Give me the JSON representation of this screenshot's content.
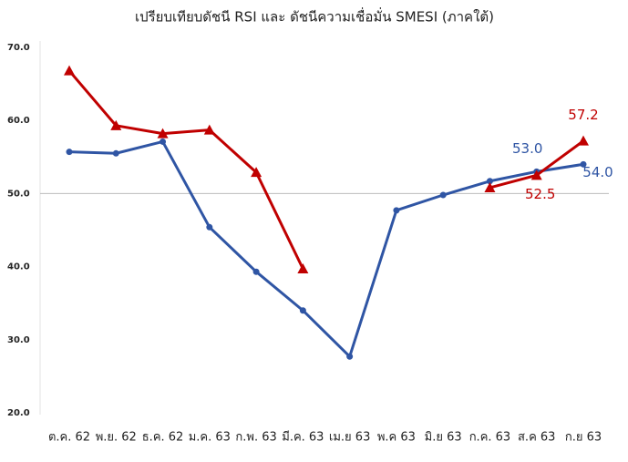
{
  "chart_data": {
    "type": "line",
    "title": "เปรียบเทียบดัชนี RSI และ ดัชนีความเชื่อมั่น SMESI (ภาคใต้)",
    "categories": [
      "ต.ค. 62",
      "พ.ย. 62",
      "ธ.ค. 62",
      "ม.ค. 63",
      "ก.พ. 63",
      "มี.ค. 63",
      "เม.ย 63",
      "พ.ค 63",
      "มิ.ย 63",
      "ก.ค. 63",
      "ส.ค 63",
      "ก.ย 63"
    ],
    "series": [
      {
        "color": "#2f55a4",
        "marker": "circle",
        "values": [
          55.7,
          55.5,
          57.1,
          45.4,
          39.3,
          34.0,
          27.7,
          47.7,
          49.8,
          51.7,
          53.0,
          54.0
        ],
        "value_labels": [
          null,
          null,
          null,
          null,
          null,
          null,
          null,
          null,
          null,
          null,
          "53.0",
          "54.0"
        ]
      },
      {
        "color": "#c00000",
        "marker": "triangle",
        "values": [
          66.8,
          59.3,
          58.2,
          58.7,
          52.9,
          39.7,
          null,
          null,
          null,
          50.8,
          52.5,
          57.2
        ],
        "value_labels": [
          null,
          null,
          null,
          null,
          null,
          null,
          null,
          null,
          null,
          null,
          "52.5",
          "57.2"
        ]
      }
    ],
    "ylim": [
      20,
      70
    ],
    "yticks": [
      {
        "value": 20,
        "label": "20.0"
      },
      {
        "value": 30,
        "label": "30.0"
      },
      {
        "value": 40,
        "label": "40.0"
      },
      {
        "value": 50,
        "label": "50.0"
      },
      {
        "value": 60,
        "label": "60.0"
      },
      {
        "value": 70,
        "label": "70.0"
      }
    ],
    "reference_line": 50,
    "grid": false
  }
}
